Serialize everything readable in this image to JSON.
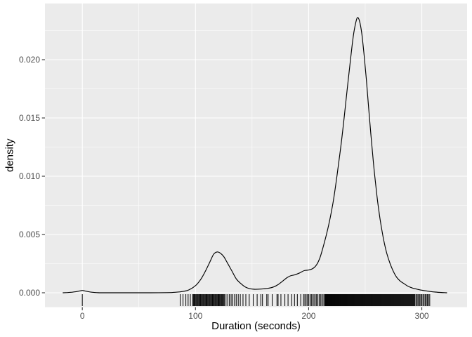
{
  "figure": {
    "x_axis_title": "Duration (seconds)",
    "y_axis_title": "density"
  },
  "chart_data": {
    "type": "density",
    "title": "",
    "xlabel": "Duration (seconds)",
    "ylabel": "density",
    "xlim": [
      -33.0,
      340.0
    ],
    "ylim": [
      -0.001235,
      0.02482
    ],
    "grid": {
      "major": true,
      "minor": true,
      "style": "white lines on gray panel (ggplot2 theme_gray)"
    },
    "legend": "none",
    "x_ticks": {
      "values": [
        0,
        100,
        200,
        300
      ],
      "labels": [
        "0",
        "100",
        "200",
        "300"
      ],
      "minor": [
        50,
        150,
        250
      ]
    },
    "y_ticks": {
      "values": [
        0,
        0.005,
        0.01,
        0.015,
        0.02
      ],
      "labels": [
        "0.000",
        "0.005",
        "0.010",
        "0.015",
        "0.020"
      ],
      "minor": [
        0.0025,
        0.0075,
        0.0125,
        0.0175,
        0.0225
      ]
    },
    "density_curve": {
      "x": [
        -17,
        -13,
        -9,
        -5,
        -2,
        0,
        2,
        5,
        9,
        13,
        18,
        40,
        60,
        75,
        82,
        88,
        93,
        97,
        101,
        105,
        109,
        113,
        116,
        119,
        122,
        125,
        128,
        132,
        136,
        140,
        144,
        148,
        152,
        158,
        164,
        169,
        173,
        177,
        181,
        184,
        188,
        192,
        196,
        200,
        204,
        207,
        210,
        213,
        216,
        219,
        222,
        225,
        228,
        231,
        234,
        237,
        239,
        241,
        243,
        245,
        247,
        249,
        251,
        253,
        255,
        257,
        259,
        261,
        263,
        265,
        267,
        269,
        272,
        275,
        278,
        281,
        284,
        288,
        292,
        296,
        300,
        304,
        308,
        312,
        316,
        320,
        322
      ],
      "y": [
        0,
        2e-05,
        5e-05,
        0.0001,
        0.00016,
        0.0002,
        0.00016,
        0.0001,
        4e-05,
        1e-05,
        0,
        0,
        0,
        1e-05,
        4e-05,
        0.0001,
        0.0002,
        0.0004,
        0.0007,
        0.0012,
        0.0019,
        0.0027,
        0.0033,
        0.0035,
        0.0034,
        0.0031,
        0.0026,
        0.0019,
        0.0012,
        0.0008,
        0.0005,
        0.00035,
        0.0003,
        0.00032,
        0.00038,
        0.0005,
        0.0007,
        0.001,
        0.0013,
        0.00145,
        0.00155,
        0.0017,
        0.0019,
        0.00195,
        0.0021,
        0.0024,
        0.003,
        0.004,
        0.0051,
        0.0064,
        0.008,
        0.01,
        0.0122,
        0.0147,
        0.0174,
        0.02,
        0.0217,
        0.0229,
        0.0236,
        0.0233,
        0.0222,
        0.0204,
        0.0183,
        0.0159,
        0.0136,
        0.0114,
        0.0095,
        0.0078,
        0.0064,
        0.0052,
        0.0042,
        0.0034,
        0.0025,
        0.0018,
        0.0013,
        0.001,
        0.0008,
        0.00055,
        0.0004,
        0.0003,
        0.00022,
        0.00016,
        0.0001,
        6e-05,
        3e-05,
        1e-05,
        0
      ],
      "peaks": [
        {
          "x": 119,
          "density": 0.0035
        },
        {
          "x": 243,
          "density": 0.0236
        }
      ]
    },
    "rug": {
      "singles": [
        0,
        86.5,
        89,
        91.5,
        93.5,
        95.5,
        142,
        144.5,
        147.5,
        151,
        154.5,
        157.8,
        159.2,
        163,
        164.2,
        167.8,
        172,
        173,
        175.5,
        179,
        181.8,
        185,
        187.5,
        190,
        193
      ],
      "bands": [
        {
          "from": 97.5,
          "to": 126,
          "step": 0.7
        },
        {
          "from": 127,
          "to": 134.5,
          "step": 1.5
        },
        {
          "from": 136,
          "to": 139.6,
          "step": 1.8
        },
        {
          "from": 195.5,
          "to": 213,
          "step": 1.15
        },
        {
          "from": 214,
          "to": 293.5,
          "step": 0.62
        },
        {
          "from": 294,
          "to": 307,
          "step": 1.0
        }
      ]
    },
    "colors": {
      "background": "#ffffff",
      "panel": "#ebebeb",
      "grid_major": "#ffffff",
      "grid_minor": "#f4f4f4",
      "curve": "#000000",
      "rug": "#000000",
      "tick_text": "#4d4d4d",
      "tick_mark": "#333333",
      "axis_title": "#000000"
    }
  }
}
